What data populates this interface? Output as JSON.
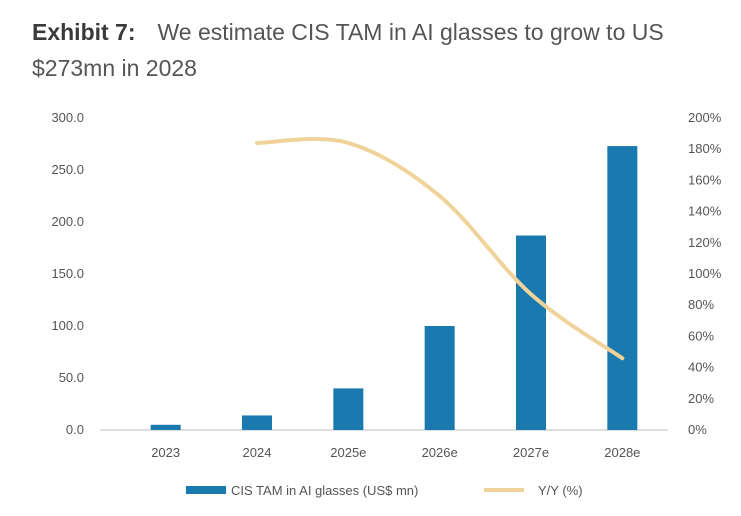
{
  "header": {
    "label": "Exhibit 7:",
    "text": "We estimate CIS TAM in AI glasses to grow to US $273mn in 2028"
  },
  "colors": {
    "bar": "#1a7ab0",
    "line": "#f0d39a",
    "text": "#555555",
    "axis": "#bfbfbf"
  },
  "chart_data": {
    "type": "bar",
    "title": "We estimate CIS TAM in AI glasses to grow to US $273mn in 2028",
    "categories": [
      "2023",
      "2024",
      "2025e",
      "2026e",
      "2027e",
      "2028e"
    ],
    "series": [
      {
        "name": "CIS TAM in AI glasses (US$ mn)",
        "type": "bar",
        "axis": "left",
        "values": [
          5,
          14,
          40,
          100,
          187,
          273
        ]
      },
      {
        "name": "Y/Y (%)",
        "type": "line",
        "axis": "right",
        "values": [
          null,
          184,
          184,
          150,
          87,
          46
        ]
      }
    ],
    "left_axis": {
      "ylim": [
        0,
        300
      ],
      "ticks": [
        "0.0",
        "50.0",
        "100.0",
        "150.0",
        "200.0",
        "250.0",
        "300.0"
      ]
    },
    "right_axis": {
      "ylim": [
        0,
        200
      ],
      "ticks": [
        "0%",
        "20%",
        "40%",
        "60%",
        "80%",
        "100%",
        "120%",
        "140%",
        "160%",
        "180%",
        "200%"
      ]
    },
    "grid": false,
    "legend_position": "bottom"
  }
}
